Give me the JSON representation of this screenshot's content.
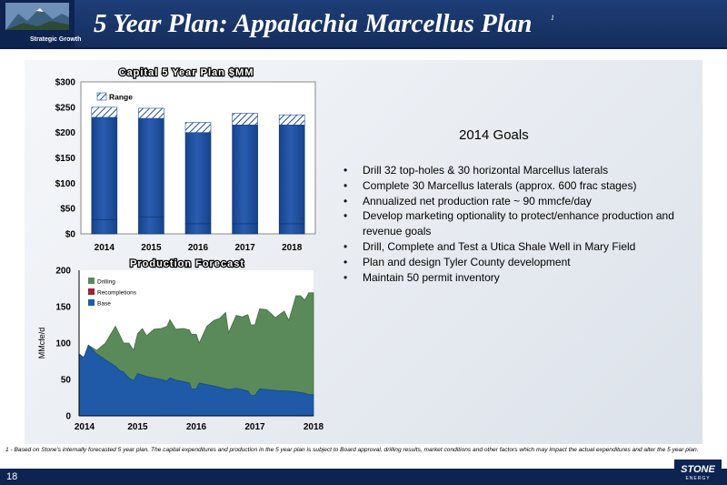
{
  "header": {
    "title": "5 Year Plan: Appalachia Marcellus Plan",
    "superscript": "1",
    "tagline": "Strategic Growth"
  },
  "goals": {
    "title": "2014 Goals",
    "items": [
      "Drill 32 top-holes & 30 horizontal Marcellus laterals",
      "Complete 30 Marcellus laterals (approx. 600 frac stages)",
      "Annualized net production rate ~ 90 mmcfe/day",
      "Develop marketing optionality to protect/enhance production and revenue  goals",
      "Drill, Complete and Test a Utica Shale Well in Mary Field",
      "Plan and design Tyler County development",
      "Maintain 50 permit inventory"
    ]
  },
  "footnote": "1 - Based on Stone's internally forecasted 5 year plan. The capital expenditures and production in the 5 year plan is subject to Board approval, drilling results, market conditions and other factors which may impact the actual expenditures and alter the 5 year plan.",
  "footer": {
    "page_number": "18",
    "logo_text": "STONE",
    "logo_subtext": "ENERGY"
  },
  "chart_data": [
    {
      "type": "bar",
      "title": "Capital 5 Year Plan $MM",
      "categories": [
        "2014",
        "2015",
        "2016",
        "2017",
        "2018"
      ],
      "series": [
        {
          "name": "",
          "values": [
            28,
            33,
            20,
            20,
            20
          ]
        },
        {
          "name": "",
          "values": [
            202,
            195,
            180,
            195,
            195
          ]
        },
        {
          "name": "Range",
          "values": [
            20,
            20,
            20,
            23,
            20
          ]
        }
      ],
      "yticks": [
        "$0",
        "$50",
        "$100",
        "$150",
        "$200",
        "$250",
        "$300"
      ],
      "ylim": [
        0,
        300
      ],
      "legend": "top-left",
      "grid": false,
      "colors": {
        "bar": "#1f4e9c",
        "bar_dark": "#163f86",
        "range": "#ffffff"
      }
    },
    {
      "type": "area",
      "title": "Production Forecast",
      "ylabel": "MMcfe/d",
      "xticks": [
        "2014",
        "2015",
        "2016",
        "2017",
        "2018"
      ],
      "yticks": [
        "0",
        "50",
        "100",
        "150",
        "200"
      ],
      "ylim": [
        0,
        200
      ],
      "xlim": [
        2014,
        2018
      ],
      "legend": "top-left",
      "grid": false,
      "x": [
        2014.0,
        2014.08,
        2014.16,
        2014.3,
        2014.45,
        2014.62,
        2014.7,
        2014.76,
        2014.85,
        2014.93,
        2015.0,
        2015.08,
        2015.15,
        2015.28,
        2015.4,
        2015.5,
        2015.55,
        2015.65,
        2015.78,
        2015.88,
        2015.92,
        2016.0,
        2016.05,
        2016.18,
        2016.3,
        2016.4,
        2016.5,
        2016.55,
        2016.68,
        2016.78,
        2016.88,
        2016.93,
        2017.0,
        2017.08,
        2017.2,
        2017.35,
        2017.5,
        2017.58,
        2017.7,
        2017.78,
        2017.85,
        2017.92,
        2018.0
      ],
      "series": [
        {
          "name": "Base",
          "values": [
            85,
            80,
            97,
            85,
            77,
            68,
            62,
            60,
            52,
            48,
            58,
            56,
            54,
            52,
            50,
            48,
            52,
            49,
            47,
            45,
            37,
            37,
            45,
            43,
            41,
            39,
            37,
            36,
            38,
            36,
            34,
            28,
            28,
            37,
            36,
            35,
            34,
            34,
            33,
            32,
            31,
            29,
            29
          ]
        },
        {
          "name": "Recompletions",
          "values": [
            0,
            0,
            0,
            0,
            0,
            0,
            0,
            0,
            0,
            0,
            0,
            0,
            0,
            0,
            0,
            0,
            0,
            0,
            0,
            0,
            0,
            0,
            0,
            0,
            0,
            0,
            0,
            0,
            0,
            0,
            0,
            0,
            0,
            0,
            0,
            0,
            0,
            0,
            0,
            0,
            0,
            0,
            0
          ]
        },
        {
          "name": "Drilling",
          "values": [
            0,
            0,
            0,
            5,
            23,
            55,
            48,
            40,
            48,
            42,
            55,
            64,
            56,
            67,
            70,
            75,
            80,
            70,
            73,
            73,
            75,
            75,
            55,
            80,
            90,
            95,
            105,
            78,
            100,
            100,
            105,
            97,
            97,
            110,
            110,
            100,
            110,
            97,
            132,
            133,
            128,
            140,
            140
          ]
        }
      ],
      "colors": {
        "Base": "#1e5aa8",
        "Recompletions": "#9b2335",
        "Drilling": "#5a8a5a"
      }
    }
  ]
}
